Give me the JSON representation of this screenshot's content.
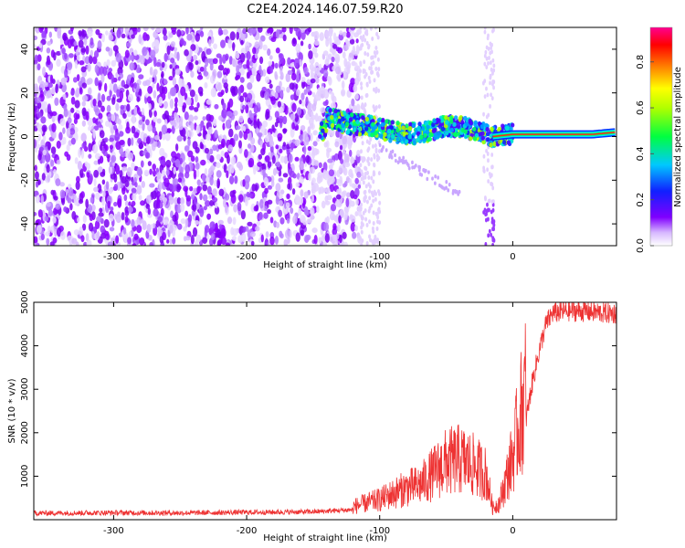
{
  "title": "C2E4.2024.146.07.59.R20",
  "chart_data": [
    {
      "type": "heatmap",
      "xlabel": "Height of straight line (km)",
      "ylabel": "Frequency (Hz)",
      "xlim": [
        -360,
        78
      ],
      "ylim": [
        -50,
        50
      ],
      "xticks": [
        -300,
        -200,
        -100,
        0
      ],
      "yticks": [
        -40,
        -20,
        0,
        20,
        40
      ],
      "colorbar": {
        "label": "Normalized spectral amplitude",
        "range": [
          0,
          0.95
        ],
        "ticks": [
          0.0,
          0.2,
          0.4,
          0.6,
          0.8
        ]
      },
      "signal_trace": [
        {
          "x": -140,
          "y": 9
        },
        {
          "x": -125,
          "y": 6
        },
        {
          "x": -110,
          "y": 5
        },
        {
          "x": -95,
          "y": 3
        },
        {
          "x": -80,
          "y": 1
        },
        {
          "x": -65,
          "y": 2
        },
        {
          "x": -50,
          "y": 5
        },
        {
          "x": -35,
          "y": 4
        },
        {
          "x": -25,
          "y": 2
        },
        {
          "x": -15,
          "y": 0
        },
        {
          "x": 0,
          "y": 1
        },
        {
          "x": 20,
          "y": 1
        },
        {
          "x": 40,
          "y": 1
        },
        {
          "x": 60,
          "y": 1
        },
        {
          "x": 78,
          "y": 2
        }
      ]
    },
    {
      "type": "line",
      "xlabel": "Height of straight line (km)",
      "ylabel": "SNR (10 * v/v)",
      "xlim": [
        -360,
        78
      ],
      "ylim": [
        0,
        5000
      ],
      "xticks": [
        -300,
        -200,
        -100,
        0
      ],
      "yticks": [
        1000,
        2000,
        3000,
        4000,
        5000
      ],
      "series": [
        {
          "name": "SNR",
          "color": "#ee3333",
          "x": [
            -360,
            -300,
            -250,
            -200,
            -150,
            -120,
            -100,
            -90,
            -80,
            -70,
            -60,
            -50,
            -40,
            -30,
            -20,
            -15,
            -10,
            -5,
            0,
            5,
            10,
            15,
            20,
            25,
            30,
            40,
            50,
            60,
            70,
            78
          ],
          "y": [
            150,
            160,
            155,
            170,
            180,
            230,
            350,
            450,
            550,
            600,
            800,
            1000,
            1050,
            950,
            800,
            200,
            300,
            700,
            1100,
            1700,
            2300,
            3200,
            3900,
            4500,
            4750,
            4800,
            4800,
            4780,
            4750,
            4750
          ]
        }
      ]
    }
  ]
}
